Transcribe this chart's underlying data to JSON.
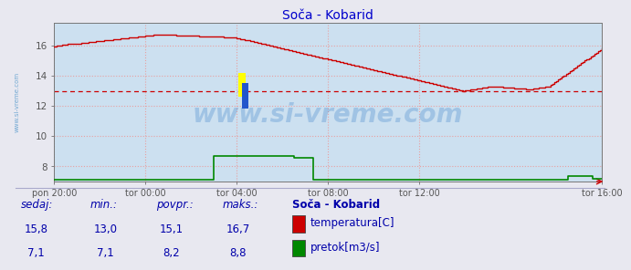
{
  "title": "Soča - Kobarid",
  "bg_color": "#cce0f0",
  "outer_bg_color": "#e8e8f0",
  "grid_color": "#e8a0a0",
  "ylim": [
    7.0,
    17.5
  ],
  "yticks": [
    8,
    10,
    12,
    14,
    16
  ],
  "xlim": [
    0,
    288
  ],
  "xtick_labels": [
    "pon 20:00",
    "tor 00:00",
    "tor 04:00",
    "tor 08:00",
    "tor 12:00",
    "tor 16:00"
  ],
  "xtick_positions": [
    0,
    48,
    96,
    144,
    192,
    288
  ],
  "avg_line_y": 13.0,
  "avg_line_color": "#cc0000",
  "temp_color": "#cc0000",
  "flow_color": "#008800",
  "watermark_text": "www.si-vreme.com",
  "watermark_color": "#4488cc",
  "left_label": "www.si-vreme.com",
  "footer_bg": "#e8e8f0",
  "footer_text_color": "#0000aa",
  "legend_title": "Soča - Kobarid",
  "sedaj_label": "sedaj:",
  "min_label": "min.:",
  "povpr_label": "povpr.:",
  "maks_label": "maks.:",
  "temp_sedaj": "15,8",
  "temp_min": "13,0",
  "temp_povpr": "15,1",
  "temp_maks": "16,7",
  "flow_sedaj": "7,1",
  "flow_min": "7,1",
  "flow_povpr": "8,2",
  "flow_maks": "8,8",
  "temp_label": "temperatura[C]",
  "flow_label": "pretok[m3/s]"
}
